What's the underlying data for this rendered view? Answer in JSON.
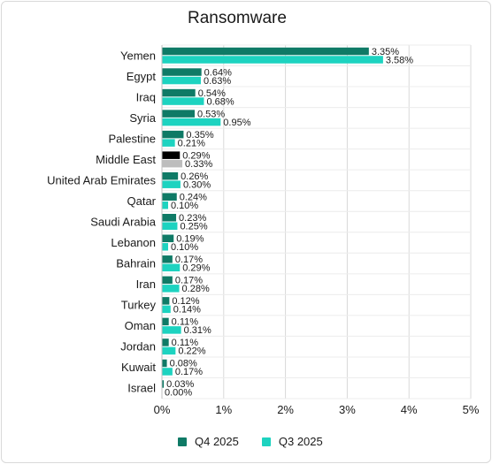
{
  "chart_data": {
    "type": "bar",
    "orientation": "horizontal",
    "title": "Ransomware",
    "categories": [
      "Yemen",
      "Egypt",
      "Iraq",
      "Syria",
      "Palestine",
      "Middle East",
      "United Arab Emirates",
      "Qatar",
      "Saudi Arabia",
      "Lebanon",
      "Bahrain",
      "Iran",
      "Turkey",
      "Oman",
      "Jordan",
      "Kuwait",
      "Israel"
    ],
    "series": [
      {
        "name": "Q4 2025",
        "color": "#0f7a66",
        "values": [
          3.35,
          0.64,
          0.54,
          0.53,
          0.35,
          0.29,
          0.26,
          0.24,
          0.23,
          0.19,
          0.17,
          0.17,
          0.12,
          0.11,
          0.11,
          0.08,
          0.03
        ],
        "labels": [
          "3.35%",
          "0.64%",
          "0.54%",
          "0.53%",
          "0.35%",
          "0.29%",
          "0.26%",
          "0.24%",
          "0.23%",
          "0.19%",
          "0.17%",
          "0.17%",
          "0.12%",
          "0.11%",
          "0.11%",
          "0.08%",
          "0.03%"
        ]
      },
      {
        "name": "Q3 2025",
        "color": "#1dd3c0",
        "values": [
          3.58,
          0.63,
          0.68,
          0.95,
          0.21,
          0.33,
          0.3,
          0.1,
          0.25,
          0.1,
          0.29,
          0.28,
          0.14,
          0.31,
          0.22,
          0.17,
          0.0
        ],
        "labels": [
          "3.58%",
          "0.63%",
          "0.68%",
          "0.95%",
          "0.21%",
          "0.33%",
          "0.30%",
          "0.10%",
          "0.25%",
          "0.10%",
          "0.29%",
          "0.28%",
          "0.14%",
          "0.31%",
          "0.22%",
          "0.17%",
          "0.00%"
        ]
      }
    ],
    "highlight": {
      "category": "Middle East",
      "colors": [
        "#000000",
        "#bdbdbd"
      ]
    },
    "xlim": [
      0,
      5
    ],
    "xticks": [
      0,
      1,
      2,
      3,
      4,
      5
    ],
    "xtick_labels": [
      "0%",
      "1%",
      "2%",
      "3%",
      "4%",
      "5%"
    ],
    "grid": "vertical",
    "legend_position": "bottom"
  }
}
